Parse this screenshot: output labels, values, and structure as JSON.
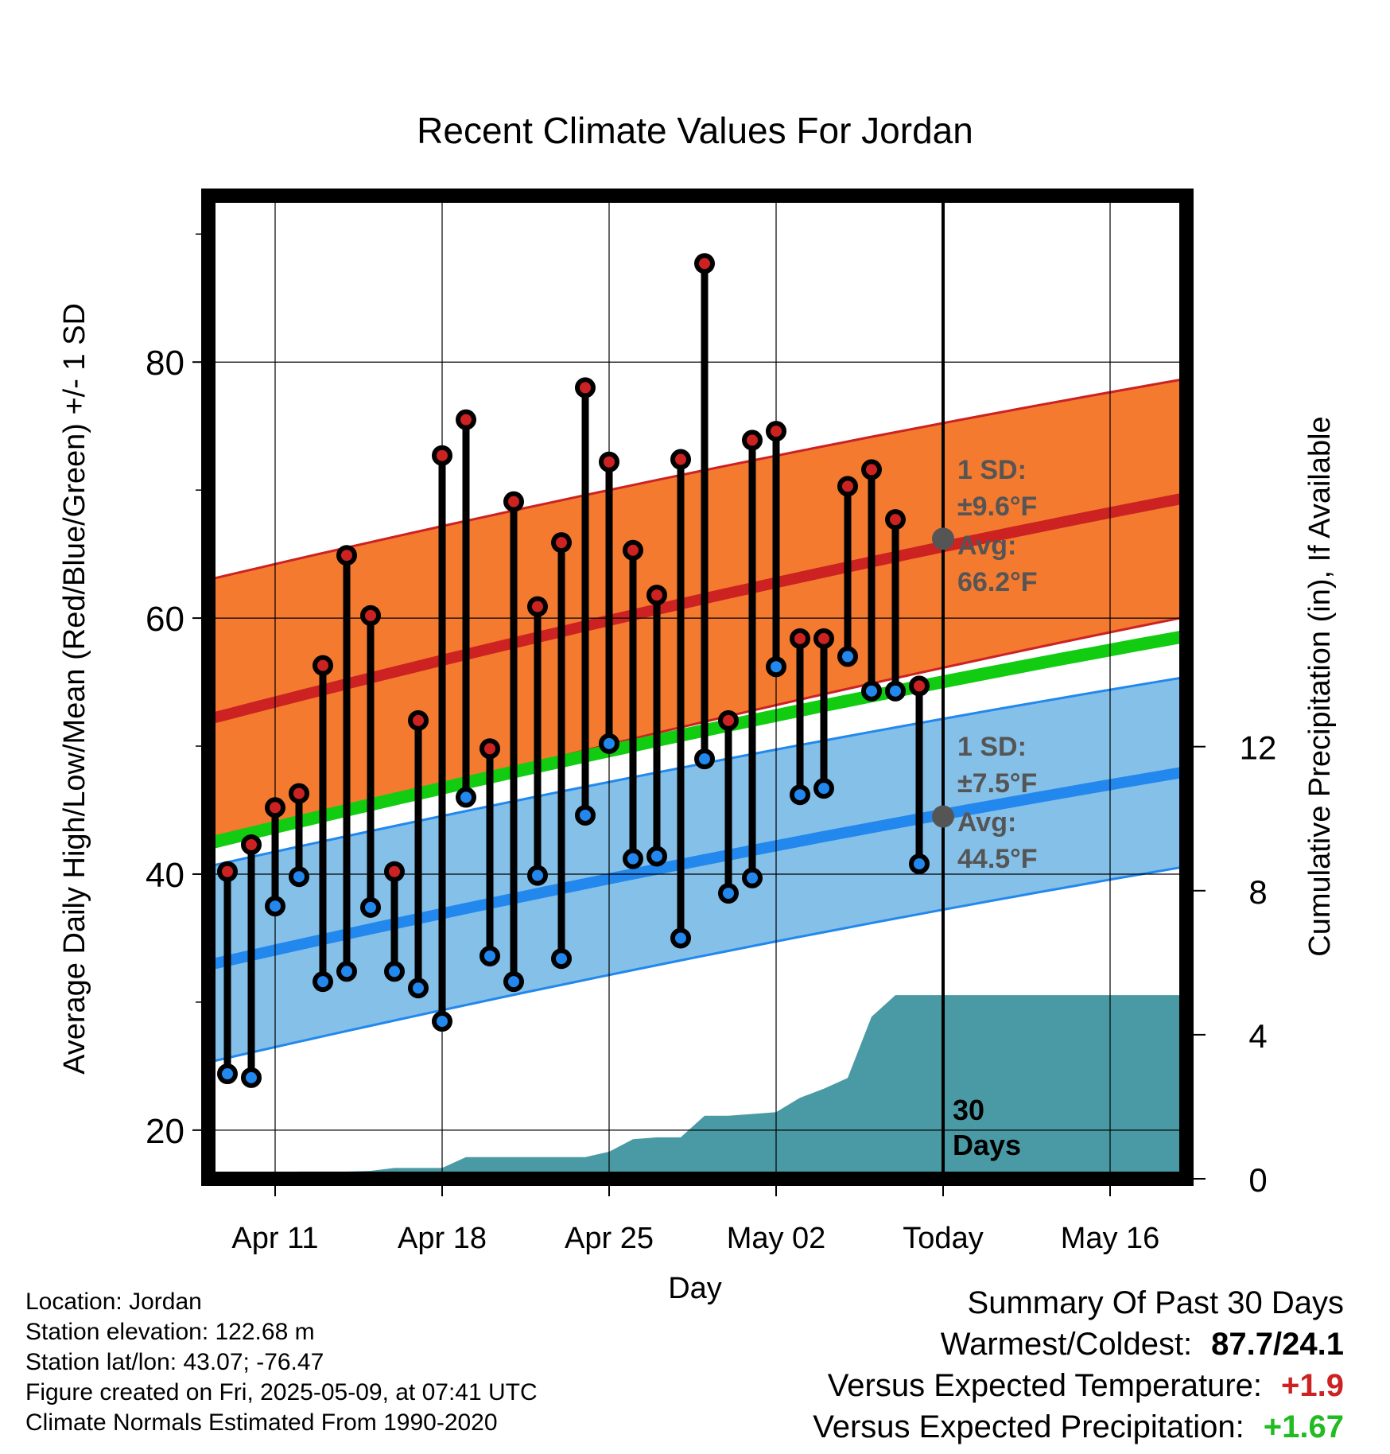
{
  "chart_data": {
    "type": "line",
    "title": "Recent Climate Values For Jordan",
    "xlabel": "Day",
    "ylabel_left": "Average Daily High/Low/Mean (Red/Blue/Green) +/- 1 SD",
    "ylabel_right": "Cumulative Precipitation (in), If Available",
    "ylim": [
      16.2,
      93
    ],
    "y_ticks": [
      20,
      40,
      60,
      80
    ],
    "y_ticks_right": [
      0,
      4,
      8,
      12
    ],
    "y2lim": [
      0,
      27.3
    ],
    "x_tick_labels": [
      {
        "day": 11,
        "label": "Apr 11"
      },
      {
        "day": 18,
        "label": "Apr 18"
      },
      {
        "day": 25,
        "label": "Apr 25"
      },
      {
        "day": 32,
        "label": "May 02"
      },
      {
        "day": 39,
        "label": "Today"
      },
      {
        "day": 46,
        "label": "May 16"
      }
    ],
    "xlim": [
      8.2,
      49.2
    ],
    "today_day": 39,
    "period_label": "30 Days",
    "colors": {
      "high": "#cc2222",
      "low": "#2288ee",
      "mean": "#11cc11",
      "high_band": "#f47a30",
      "low_band": "#85c0e8",
      "precip": "#4a9aa5",
      "frame": "#000000"
    },
    "normals": {
      "days": [
        8.2,
        49.2
      ],
      "high_avg": [
        52.1,
        69.4
      ],
      "high_upper": [
        63.0,
        78.7
      ],
      "high_lower": [
        42.1,
        60.1
      ],
      "low_avg": [
        32.9,
        48.0
      ],
      "low_upper": [
        40.6,
        55.4
      ],
      "low_lower": [
        25.3,
        40.6
      ],
      "mean": [
        42.4,
        58.6
      ]
    },
    "series": [
      {
        "name": "High",
        "x": [
          9,
          10,
          11,
          12,
          13,
          14,
          15,
          16,
          17,
          18,
          19,
          20,
          21,
          22,
          23,
          24,
          25,
          26,
          27,
          28,
          29,
          30,
          31,
          32,
          33,
          34,
          35,
          36,
          37,
          38
        ],
        "values": [
          40.2,
          42.3,
          45.2,
          46.3,
          56.3,
          64.9,
          60.2,
          40.2,
          52.0,
          72.7,
          75.5,
          49.8,
          69.1,
          60.9,
          65.9,
          78.0,
          72.2,
          65.3,
          61.8,
          72.4,
          87.7,
          52.0,
          73.9,
          74.6,
          58.4,
          58.4,
          70.3,
          71.6,
          67.7,
          54.7
        ]
      },
      {
        "name": "Low",
        "x": [
          9,
          10,
          11,
          12,
          13,
          14,
          15,
          16,
          17,
          18,
          19,
          20,
          21,
          22,
          23,
          24,
          25,
          26,
          27,
          28,
          29,
          30,
          31,
          32,
          33,
          34,
          35,
          36,
          37,
          38
        ],
        "values": [
          24.4,
          24.1,
          37.5,
          39.8,
          31.6,
          32.4,
          37.4,
          32.4,
          31.1,
          28.5,
          46.0,
          33.6,
          31.6,
          39.9,
          33.4,
          44.6,
          50.2,
          41.2,
          41.4,
          35.0,
          49.0,
          38.5,
          39.7,
          56.2,
          46.2,
          46.7,
          57.0,
          54.3,
          54.3,
          40.8
        ]
      }
    ],
    "precip_cumulative": {
      "x": [
        9,
        10,
        11,
        12,
        13,
        14,
        15,
        16,
        17,
        18,
        19,
        20,
        21,
        22,
        23,
        24,
        25,
        26,
        27,
        28,
        29,
        30,
        31,
        32,
        33,
        34,
        35,
        36,
        37,
        38,
        39,
        40,
        41,
        42,
        43,
        44,
        45,
        46,
        47,
        48,
        49.2
      ],
      "values": [
        0.0,
        0.1,
        0.15,
        0.2,
        0.2,
        0.2,
        0.22,
        0.3,
        0.3,
        0.3,
        0.6,
        0.6,
        0.6,
        0.6,
        0.6,
        0.6,
        0.75,
        1.1,
        1.15,
        1.15,
        1.75,
        1.75,
        1.8,
        1.85,
        2.25,
        2.5,
        2.8,
        4.5,
        5.1,
        5.1,
        5.1,
        5.1,
        5.1,
        5.1,
        5.1,
        5.1,
        5.1,
        5.1,
        5.1,
        5.1,
        5.1
      ]
    },
    "annotations": {
      "high_sd_label": "1 SD:",
      "high_sd_value": "±9.6°F",
      "high_avg_label": "Avg:",
      "high_avg_value": "66.2°F",
      "high_avg_marker": 66.2,
      "low_sd_label": "1 SD:",
      "low_sd_value": "±7.5°F",
      "low_avg_label": "Avg:",
      "low_avg_value": "44.5°F",
      "low_avg_marker": 44.5
    }
  },
  "info": {
    "location": "Location: Jordan",
    "elevation": "Station elevation: 122.68 m",
    "latlon": "Station lat/lon: 43.07; -76.47",
    "created": "Figure created on Fri, 2025-05-09, at 07:41 UTC",
    "normals": "Climate Normals Estimated From 1990-2020"
  },
  "summary": {
    "title": "Summary Of Past 30 Days",
    "warm_cold_label": "Warmest/Coldest:",
    "warm_cold_value": "87.7/24.1",
    "temp_label": "Versus Expected Temperature:",
    "temp_value": "+1.9",
    "temp_color": "#cc2222",
    "precip_label": "Versus Expected Precipitation:",
    "precip_value": "+1.67",
    "precip_color": "#22bb22"
  }
}
